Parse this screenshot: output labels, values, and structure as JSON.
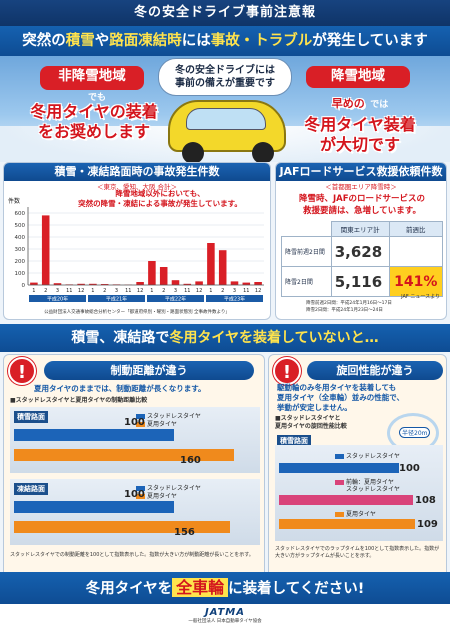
{
  "top_title": "冬の安全ドライブ事前注意報",
  "headline": {
    "pre": "突然の",
    "w1": "積雪",
    "mid1": "や",
    "w2": "路面凍結時",
    "mid2": "には",
    "w3": "事故・トラブル",
    "post": "が発生しています"
  },
  "hero": {
    "bubble_line1": "冬の安全ドライブには",
    "bubble_line2": "事前の備えが重要です",
    "left_badge": "非降雪地域",
    "left_de": "でも",
    "left_msg1": "冬用タイヤの装着",
    "left_msg2": "をお奨めします",
    "right_badge": "降雪地域",
    "right_pre": "早めの",
    "right_de": "では",
    "right_msg1": "冬用タイヤ装着",
    "right_msg2": "が大切です"
  },
  "accident": {
    "title": "積雪・凍結路面時の事故発生件数",
    "subtitle": "＜東京、愛知、大阪 合計＞",
    "note_line1": "降雪地域以外においても、",
    "note_line2": "突然の降雪・凍結による事故が発生しています。",
    "y_unit": "件数",
    "source": "公益財団法人交通事故総合分析センター「都道府県別・曜別・路面状態別 全事故件数より」",
    "chart_data": {
      "type": "bar",
      "yticks": [
        0,
        100,
        200,
        300,
        400,
        500,
        600
      ],
      "ylim": [
        0,
        650
      ],
      "groups": [
        {
          "label": "平成20年",
          "months": [
            "1",
            "2",
            "3",
            "11",
            "12"
          ],
          "values": [
            20,
            580,
            15,
            5,
            10
          ]
        },
        {
          "label": "平成21年",
          "months": [
            "1",
            "2",
            "3",
            "11",
            "12"
          ],
          "values": [
            10,
            8,
            5,
            3,
            25
          ]
        },
        {
          "label": "平成22年",
          "months": [
            "1",
            "2",
            "3",
            "11",
            "12"
          ],
          "values": [
            200,
            150,
            40,
            10,
            30
          ]
        },
        {
          "label": "平成23年",
          "months": [
            "1",
            "2",
            "3",
            "11",
            "12"
          ],
          "values": [
            350,
            290,
            30,
            20,
            25
          ]
        }
      ],
      "color": "#d91f26"
    }
  },
  "jaf": {
    "title": "JAFロードサービス救援依頼件数",
    "subtitle": "＜首都圏エリア降雪時＞",
    "note_line1": "降雪時、JAFのロードサービスの",
    "note_line2": "救援要請は、急増しています。",
    "col1": "関東エリア計",
    "col2": "前週比",
    "row1_label": "降雪前週2日間",
    "row1_value": "3,628",
    "row2_label": "降雪2日間",
    "row2_value": "5,116",
    "row2_pct": "141%",
    "source": "JAF ニュースより",
    "period1": "降雪前週2日間：平成24年1月16日〜17日",
    "period2": "降雪2日間：平成24年1月23日〜24日"
  },
  "band": {
    "pre": "積雪、凍結路で",
    "y": "冬用タイヤを装着していないと…"
  },
  "brake": {
    "title": "制動距離が違う",
    "desc": "夏用タイヤのままでは、制動距離が長くなります。",
    "caption": "■スタッドレスタイヤと夏用タイヤの制動距離比較",
    "road1": "積雪路面",
    "road2": "凍結路面",
    "legend1": "スタッドレスタイヤ",
    "legend2": "夏用タイヤ",
    "r1_stud": "100",
    "r1_summer": "160",
    "r2_stud": "100",
    "r2_summer": "156",
    "footnote": "スタッドレスタイヤでの制動距離を100として指数表示した。指数が大きい方が制動距離が長いことを示す。"
  },
  "turn": {
    "title": "旋回性能が違う",
    "desc_line1": "駆動輪のみ冬用タイヤを装着しても",
    "desc_line2": "夏用タイヤ（全車輪）並みの性能で、",
    "desc_line3": "挙動が安定しません。",
    "caption": "■スタッドレスタイヤと",
    "caption2": "夏用タイヤの旋回性能比較",
    "radius": "半径20m",
    "road": "積雪路面",
    "l1": "スタッドレスタイヤ",
    "l2": "前輪：夏用タイヤ",
    "l3": "スタッドレスタイヤ",
    "l4": "夏用タイヤ",
    "v1": "100",
    "v2": "108",
    "v3": "109",
    "footnote": "スタッドレスタイヤでのラップタイムを100として指数表示した。指数が大きい方がラップタイムが長いことを示す。"
  },
  "bottom": {
    "pre": "冬用タイヤを",
    "y": "全車輪",
    "post": "に装着してください!"
  },
  "footer": {
    "logo": "JATMA",
    "sub": "一般社団法人 日本自動車タイヤ協会"
  }
}
